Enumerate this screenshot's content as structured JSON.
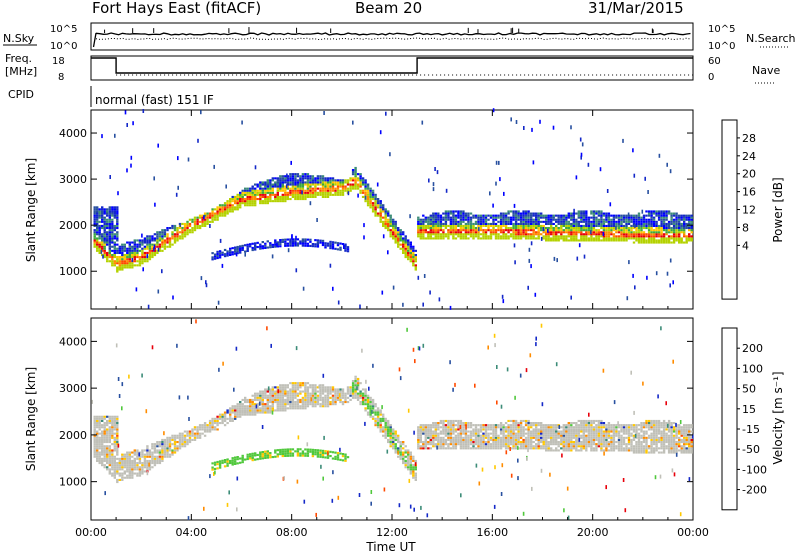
{
  "header": {
    "station": "Fort Hays East (fitACF)",
    "beam": "Beam 20",
    "date": "31/Mar/2015"
  },
  "top_panels": {
    "nsky_label": "N.Sky",
    "nsky_ticks": [
      "10^5",
      "10^0"
    ],
    "nsearch_label": "N.Search",
    "nsearch_ticks": [
      "10^5",
      "10^0"
    ],
    "freq_label_1": "Freq.",
    "freq_label_2": "[MHz]",
    "freq_ticks": [
      "18",
      "8"
    ],
    "nave_label": "Nave",
    "nave_ticks": [
      "60",
      "0"
    ],
    "cpid_label": "CPID",
    "cpid_text": "normal (fast) 151 IF"
  },
  "chart_data": [
    {
      "type": "heatmap",
      "title": "",
      "xlabel": "Time UT",
      "ylabel": "Slant Range [km]",
      "x_ticks": [
        "00:00",
        "04:00",
        "08:00",
        "12:00",
        "16:00",
        "20:00",
        "00:00"
      ],
      "xlim_hours": [
        0,
        24
      ],
      "y_ticks": [
        1000,
        2000,
        3000,
        4000
      ],
      "ylim": [
        180,
        4500
      ],
      "colorbar": {
        "label": "Power [dB]",
        "ticks": [
          "28",
          "24",
          "20",
          "16",
          "12",
          "8",
          "4"
        ],
        "colors": [
          "#e8000b",
          "#ff4a00",
          "#ff8c00",
          "#ffc800",
          "#b4d200",
          "#3caa3c",
          "#3c8c78",
          "#2850a0",
          "#1428c8",
          "#0000ff"
        ]
      },
      "bands": [
        {
          "name": "main echo",
          "points": [
            [
              0,
              1700
            ],
            [
              1,
              1150
            ],
            [
              2,
              1300
            ],
            [
              4,
              2000
            ],
            [
              6,
              2550
            ],
            [
              8,
              2700
            ],
            [
              10,
              2800
            ],
            [
              10.5,
              2950
            ],
            [
              12.9,
              1150
            ],
            [
              13,
              1850
            ],
            [
              16,
              1850
            ],
            [
              20,
              1800
            ],
            [
              24,
              1750
            ]
          ]
        }
      ]
    },
    {
      "type": "heatmap",
      "title": "",
      "xlabel": "Time UT",
      "ylabel": "Slant Range [km]",
      "x_ticks": [
        "00:00",
        "04:00",
        "08:00",
        "12:00",
        "16:00",
        "20:00",
        "00:00"
      ],
      "xlim_hours": [
        0,
        24
      ],
      "y_ticks": [
        1000,
        2000,
        3000,
        4000
      ],
      "ylim": [
        180,
        4500
      ],
      "colorbar": {
        "label": "Velocity [m s⁻¹]",
        "ticks": [
          "200",
          "100",
          "50",
          "15",
          "-15",
          "-50",
          "-100",
          "-200"
        ],
        "colors": [
          "#1428c8",
          "#2850a0",
          "#3c8c78",
          "#50c83c",
          "#c0c0b8",
          "#ffc800",
          "#ff8c00",
          "#ff4a00",
          "#e8000b"
        ]
      }
    }
  ]
}
